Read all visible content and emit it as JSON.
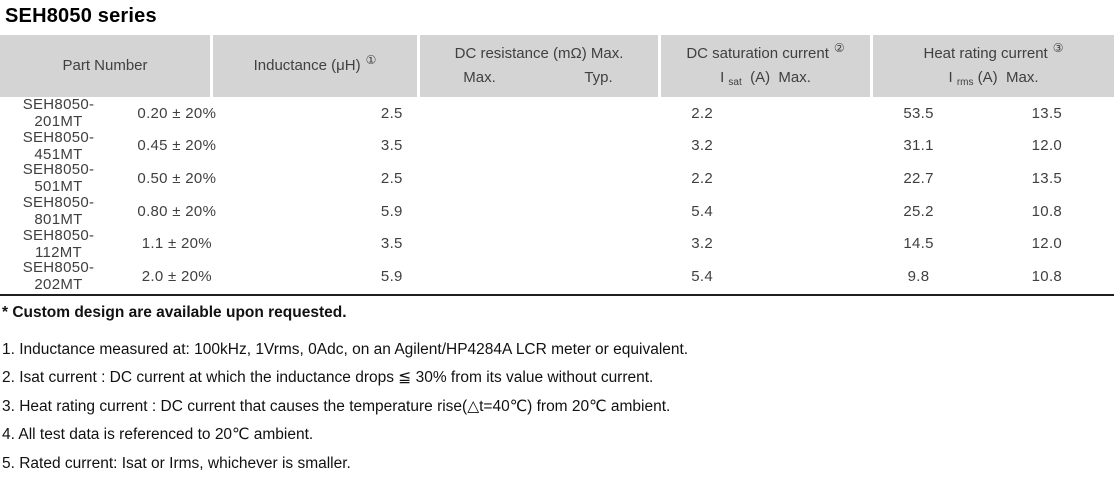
{
  "page": {
    "title": "SEH8050 series"
  },
  "colors": {
    "header_bg": "#d4d4d4",
    "header_text": "#404040",
    "body_text": "#3f3f3f",
    "note_text": "#111111",
    "rule_color": "#1f1f1f"
  },
  "table": {
    "header": {
      "part_number": "Part Number",
      "inductance": "Inductance (μH)",
      "inductance_note": "①",
      "dc_resistance": "DC resistance (mΩ) Max.",
      "dcr_max": "Max.",
      "dcr_typ": "Typ.",
      "saturation": "DC saturation current",
      "saturation_note": "②",
      "isat_prefix": "I ",
      "isat_sub": "sat",
      "isat_suffix": "  (A)  Max.",
      "heat": "Heat rating current",
      "heat_note": "③",
      "irms_prefix": "I ",
      "irms_sub": "rms",
      "irms_suffix": " (A)  Max."
    },
    "rows": [
      {
        "part": "SEH8050-201MT",
        "inductance": "0.20 ± 20%",
        "dcr_max": "2.5",
        "dcr_typ": "2.2",
        "isat": "53.5",
        "irms": "13.5"
      },
      {
        "part": "SEH8050-451MT",
        "inductance": "0.45 ± 20%",
        "dcr_max": "3.5",
        "dcr_typ": "3.2",
        "isat": "31.1",
        "irms": "12.0"
      },
      {
        "part": "SEH8050-501MT",
        "inductance": "0.50 ± 20%",
        "dcr_max": "2.5",
        "dcr_typ": "2.2",
        "isat": "22.7",
        "irms": "13.5"
      },
      {
        "part": "SEH8050-801MT",
        "inductance": "0.80 ± 20%",
        "dcr_max": "5.9",
        "dcr_typ": "5.4",
        "isat": "25.2",
        "irms": "10.8"
      },
      {
        "part": "SEH8050-112MT",
        "inductance": "1.1 ± 20%",
        "dcr_max": "3.5",
        "dcr_typ": "3.2",
        "isat": "14.5",
        "irms": "12.0"
      },
      {
        "part": "SEH8050-202MT",
        "inductance": "2.0 ± 20%",
        "dcr_max": "5.9",
        "dcr_typ": "5.4",
        "isat": "9.8",
        "irms": "10.8"
      }
    ]
  },
  "notes": {
    "custom": "* Custom design are available upon requested.",
    "items": [
      "1. Inductance measured at: 100kHz, 1Vrms, 0Adc, on an Agilent/HP4284A LCR meter or equivalent.",
      "2. Isat current : DC current at which the inductance drops ≦ 30% from its value without current.",
      "3. Heat rating current : DC current that causes the temperature rise(△t=40℃) from 20℃ ambient.",
      "4. All test data is referenced to 20℃ ambient.",
      "5. Rated current: Isat or Irms, whichever is smaller."
    ]
  }
}
